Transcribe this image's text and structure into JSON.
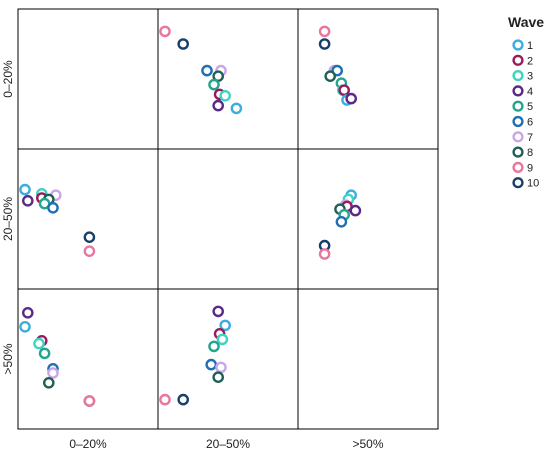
{
  "chart_data": {
    "type": "scatter",
    "categories": [
      "0–20%",
      "20–50%",
      ">50%"
    ],
    "legend": {
      "title": "Wave",
      "entries": [
        {
          "label": "1",
          "color": "#3aaee0"
        },
        {
          "label": "2",
          "color": "#9a1b5a"
        },
        {
          "label": "3",
          "color": "#3fd3c2"
        },
        {
          "label": "4",
          "color": "#5b2a86"
        },
        {
          "label": "5",
          "color": "#22a58e"
        },
        {
          "label": "6",
          "color": "#1f6fb5"
        },
        {
          "label": "7",
          "color": "#c9a6e8"
        },
        {
          "label": "8",
          "color": "#1f5f55"
        },
        {
          "label": "9",
          "color": "#e9779d"
        },
        {
          "label": "10",
          "color": "#173f6b"
        }
      ]
    },
    "panels": [
      {
        "row": "0–20%",
        "col": "20–50%",
        "points": [
          {
            "wave": "9",
            "x": 0.05,
            "y": 0.16
          },
          {
            "wave": "10",
            "x": 0.18,
            "y": 0.25
          },
          {
            "wave": "6",
            "x": 0.35,
            "y": 0.44
          },
          {
            "wave": "7",
            "x": 0.45,
            "y": 0.44
          },
          {
            "wave": "8",
            "x": 0.43,
            "y": 0.48
          },
          {
            "wave": "5",
            "x": 0.4,
            "y": 0.54
          },
          {
            "wave": "2",
            "x": 0.44,
            "y": 0.61
          },
          {
            "wave": "3",
            "x": 0.48,
            "y": 0.62
          },
          {
            "wave": "4",
            "x": 0.43,
            "y": 0.69
          },
          {
            "wave": "1",
            "x": 0.56,
            "y": 0.71
          }
        ]
      },
      {
        "row": "0–20%",
        "col": ">50%",
        "points": [
          {
            "wave": "9",
            "x": 0.19,
            "y": 0.16
          },
          {
            "wave": "10",
            "x": 0.19,
            "y": 0.25
          },
          {
            "wave": "7",
            "x": 0.26,
            "y": 0.44
          },
          {
            "wave": "6",
            "x": 0.28,
            "y": 0.44
          },
          {
            "wave": "8",
            "x": 0.23,
            "y": 0.48
          },
          {
            "wave": "5",
            "x": 0.31,
            "y": 0.53
          },
          {
            "wave": "3",
            "x": 0.32,
            "y": 0.58
          },
          {
            "wave": "2",
            "x": 0.33,
            "y": 0.58
          },
          {
            "wave": "1",
            "x": 0.35,
            "y": 0.65
          },
          {
            "wave": "4",
            "x": 0.38,
            "y": 0.64
          }
        ]
      },
      {
        "row": "20–50%",
        "col": "0–20%",
        "points": [
          {
            "wave": "1",
            "x": 0.05,
            "y": 0.29
          },
          {
            "wave": "3",
            "x": 0.17,
            "y": 0.32
          },
          {
            "wave": "7",
            "x": 0.27,
            "y": 0.33
          },
          {
            "wave": "4",
            "x": 0.07,
            "y": 0.37
          },
          {
            "wave": "2",
            "x": 0.17,
            "y": 0.35
          },
          {
            "wave": "8",
            "x": 0.22,
            "y": 0.36
          },
          {
            "wave": "5",
            "x": 0.19,
            "y": 0.39
          },
          {
            "wave": "6",
            "x": 0.25,
            "y": 0.42
          },
          {
            "wave": "10",
            "x": 0.51,
            "y": 0.63
          },
          {
            "wave": "9",
            "x": 0.51,
            "y": 0.73
          }
        ]
      },
      {
        "row": "20–50%",
        "col": ">50%",
        "points": [
          {
            "wave": "1",
            "x": 0.38,
            "y": 0.33
          },
          {
            "wave": "3",
            "x": 0.36,
            "y": 0.36
          },
          {
            "wave": "7",
            "x": 0.34,
            "y": 0.4
          },
          {
            "wave": "2",
            "x": 0.35,
            "y": 0.41
          },
          {
            "wave": "8",
            "x": 0.3,
            "y": 0.43
          },
          {
            "wave": "4",
            "x": 0.41,
            "y": 0.44
          },
          {
            "wave": "5",
            "x": 0.33,
            "y": 0.47
          },
          {
            "wave": "6",
            "x": 0.31,
            "y": 0.52
          },
          {
            "wave": "10",
            "x": 0.19,
            "y": 0.69
          },
          {
            "wave": "9",
            "x": 0.19,
            "y": 0.75
          }
        ]
      },
      {
        "row": ">50%",
        "col": "0–20%",
        "points": [
          {
            "wave": "4",
            "x": 0.07,
            "y": 0.17
          },
          {
            "wave": "1",
            "x": 0.05,
            "y": 0.27
          },
          {
            "wave": "2",
            "x": 0.17,
            "y": 0.37
          },
          {
            "wave": "3",
            "x": 0.15,
            "y": 0.39
          },
          {
            "wave": "5",
            "x": 0.19,
            "y": 0.46
          },
          {
            "wave": "6",
            "x": 0.25,
            "y": 0.57
          },
          {
            "wave": "7",
            "x": 0.25,
            "y": 0.6
          },
          {
            "wave": "8",
            "x": 0.22,
            "y": 0.67
          },
          {
            "wave": "10",
            "x": 0.51,
            "y": 0.8
          },
          {
            "wave": "9",
            "x": 0.51,
            "y": 0.8
          }
        ]
      },
      {
        "row": ">50%",
        "col": "20–50%",
        "points": [
          {
            "wave": "4",
            "x": 0.43,
            "y": 0.16
          },
          {
            "wave": "1",
            "x": 0.48,
            "y": 0.26
          },
          {
            "wave": "2",
            "x": 0.44,
            "y": 0.32
          },
          {
            "wave": "3",
            "x": 0.46,
            "y": 0.36
          },
          {
            "wave": "5",
            "x": 0.4,
            "y": 0.41
          },
          {
            "wave": "6",
            "x": 0.38,
            "y": 0.54
          },
          {
            "wave": "7",
            "x": 0.45,
            "y": 0.56
          },
          {
            "wave": "8",
            "x": 0.43,
            "y": 0.63
          },
          {
            "wave": "9",
            "x": 0.05,
            "y": 0.79
          },
          {
            "wave": "10",
            "x": 0.18,
            "y": 0.79
          }
        ]
      }
    ]
  }
}
